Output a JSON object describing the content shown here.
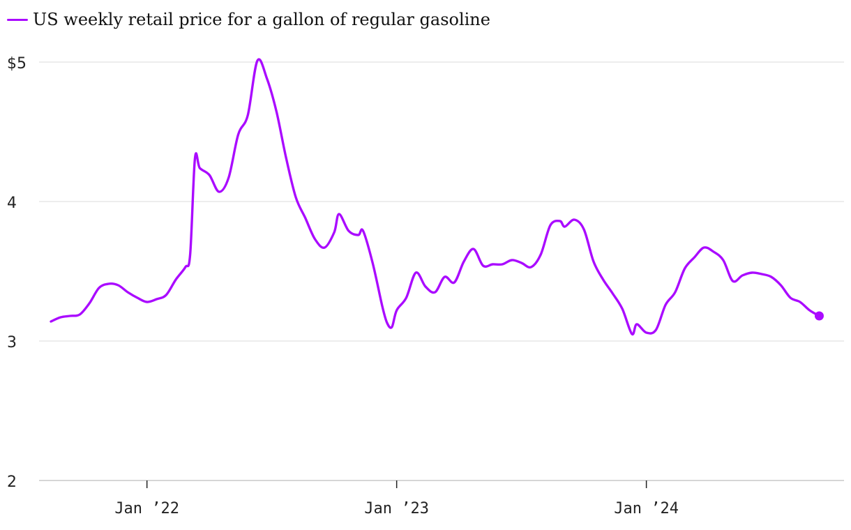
{
  "chart_data": {
    "type": "line",
    "title": "",
    "xlabel": "",
    "ylabel": "",
    "legend": "top-left",
    "grid": true,
    "xlim": [
      "2021-08-16",
      "2024-10-07"
    ],
    "ylim": [
      2,
      5
    ],
    "y_ticks": [
      {
        "value": 5,
        "label": "$5"
      },
      {
        "value": 4,
        "label": "4"
      },
      {
        "value": 3,
        "label": "3"
      },
      {
        "value": 2,
        "label": "2"
      }
    ],
    "x_ticks": [
      {
        "value": "2022-01-03",
        "label": "Jan ’22"
      },
      {
        "value": "2023-01-02",
        "label": "Jan ’23"
      },
      {
        "value": "2024-01-01",
        "label": "Jan ’24"
      }
    ],
    "series": [
      {
        "name": "US weekly retail price for a gallon of regular gasoline",
        "color": "#aa0bff",
        "end_marker": true,
        "points": [
          [
            "2021-08-16",
            3.14
          ],
          [
            "2021-08-30",
            3.17
          ],
          [
            "2021-09-13",
            3.18
          ],
          [
            "2021-09-27",
            3.19
          ],
          [
            "2021-10-11",
            3.27
          ],
          [
            "2021-10-25",
            3.38
          ],
          [
            "2021-11-08",
            3.41
          ],
          [
            "2021-11-22",
            3.4
          ],
          [
            "2021-12-06",
            3.35
          ],
          [
            "2021-12-20",
            3.31
          ],
          [
            "2022-01-03",
            3.28
          ],
          [
            "2022-01-17",
            3.3
          ],
          [
            "2022-01-31",
            3.33
          ],
          [
            "2022-02-14",
            3.44
          ],
          [
            "2022-02-28",
            3.53
          ],
          [
            "2022-03-07",
            3.62
          ],
          [
            "2022-03-14",
            4.31
          ],
          [
            "2022-03-21",
            4.24
          ],
          [
            "2022-04-04",
            4.19
          ],
          [
            "2022-04-18",
            4.07
          ],
          [
            "2022-05-02",
            4.17
          ],
          [
            "2022-05-16",
            4.48
          ],
          [
            "2022-05-30",
            4.62
          ],
          [
            "2022-06-13",
            5.01
          ],
          [
            "2022-06-27",
            4.88
          ],
          [
            "2022-07-11",
            4.64
          ],
          [
            "2022-07-25",
            4.31
          ],
          [
            "2022-08-08",
            4.03
          ],
          [
            "2022-08-22",
            3.88
          ],
          [
            "2022-09-05",
            3.73
          ],
          [
            "2022-09-19",
            3.67
          ],
          [
            "2022-10-03",
            3.78
          ],
          [
            "2022-10-10",
            3.91
          ],
          [
            "2022-10-24",
            3.79
          ],
          [
            "2022-11-07",
            3.76
          ],
          [
            "2022-11-14",
            3.79
          ],
          [
            "2022-11-28",
            3.56
          ],
          [
            "2022-12-12",
            3.25
          ],
          [
            "2022-12-19",
            3.13
          ],
          [
            "2022-12-26",
            3.1
          ],
          [
            "2023-01-02",
            3.22
          ],
          [
            "2023-01-16",
            3.31
          ],
          [
            "2023-01-30",
            3.49
          ],
          [
            "2023-02-13",
            3.39
          ],
          [
            "2023-02-27",
            3.35
          ],
          [
            "2023-03-13",
            3.46
          ],
          [
            "2023-03-27",
            3.42
          ],
          [
            "2023-04-10",
            3.57
          ],
          [
            "2023-04-24",
            3.66
          ],
          [
            "2023-05-08",
            3.54
          ],
          [
            "2023-05-22",
            3.55
          ],
          [
            "2023-06-05",
            3.55
          ],
          [
            "2023-06-19",
            3.58
          ],
          [
            "2023-07-03",
            3.56
          ],
          [
            "2023-07-17",
            3.53
          ],
          [
            "2023-07-31",
            3.62
          ],
          [
            "2023-08-14",
            3.83
          ],
          [
            "2023-08-28",
            3.86
          ],
          [
            "2023-09-04",
            3.82
          ],
          [
            "2023-09-18",
            3.87
          ],
          [
            "2023-10-02",
            3.8
          ],
          [
            "2023-10-16",
            3.57
          ],
          [
            "2023-10-30",
            3.44
          ],
          [
            "2023-11-13",
            3.34
          ],
          [
            "2023-11-27",
            3.23
          ],
          [
            "2023-12-11",
            3.05
          ],
          [
            "2023-12-18",
            3.12
          ],
          [
            "2024-01-01",
            3.06
          ],
          [
            "2024-01-15",
            3.08
          ],
          [
            "2024-01-29",
            3.26
          ],
          [
            "2024-02-12",
            3.35
          ],
          [
            "2024-02-26",
            3.52
          ],
          [
            "2024-03-11",
            3.6
          ],
          [
            "2024-03-25",
            3.67
          ],
          [
            "2024-04-08",
            3.64
          ],
          [
            "2024-04-22",
            3.58
          ],
          [
            "2024-05-06",
            3.43
          ],
          [
            "2024-05-20",
            3.47
          ],
          [
            "2024-06-03",
            3.49
          ],
          [
            "2024-06-17",
            3.48
          ],
          [
            "2024-07-01",
            3.46
          ],
          [
            "2024-07-15",
            3.4
          ],
          [
            "2024-07-29",
            3.31
          ],
          [
            "2024-08-12",
            3.28
          ],
          [
            "2024-08-26",
            3.22
          ],
          [
            "2024-09-09",
            3.18
          ]
        ]
      }
    ]
  }
}
